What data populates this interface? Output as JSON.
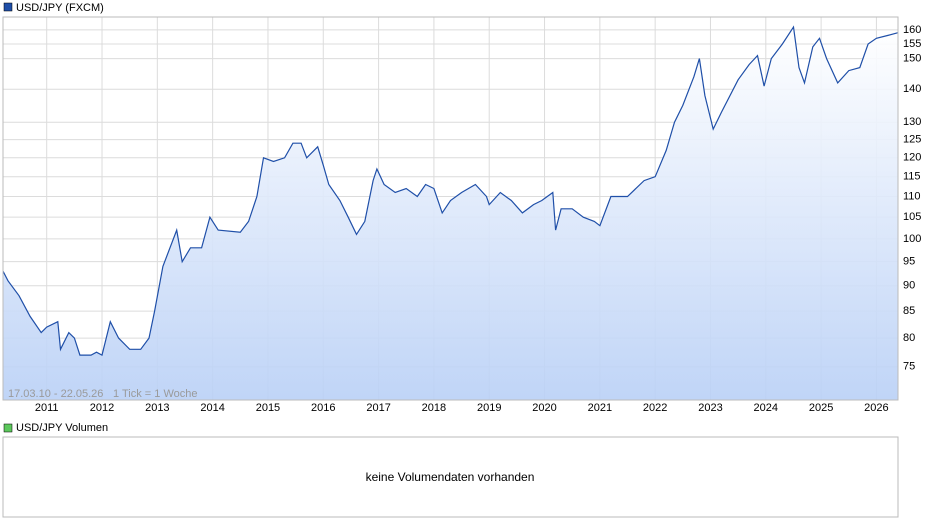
{
  "chart_data": {
    "type": "line",
    "log_scale": true,
    "grid": true,
    "range_label": "17.03.10 - 22.05.26",
    "tick_info": "1 Tick = 1 Woche",
    "xlim": [
      2010.21,
      2026.39
    ],
    "xticks": [
      2011,
      2012,
      2013,
      2014,
      2015,
      2016,
      2017,
      2018,
      2019,
      2020,
      2021,
      2022,
      2023,
      2024,
      2025,
      2026
    ],
    "ylim": [
      69.6,
      164.7
    ],
    "yticks": [
      75,
      80,
      85,
      90,
      95,
      100,
      105,
      110,
      115,
      120,
      125,
      130,
      140,
      150,
      155,
      160
    ],
    "x": [
      2010.21,
      2010.3,
      2010.5,
      2010.7,
      2010.9,
      2011.0,
      2011.2,
      2011.25,
      2011.4,
      2011.5,
      2011.6,
      2011.8,
      2011.9,
      2012.0,
      2012.15,
      2012.3,
      2012.5,
      2012.7,
      2012.85,
      2012.95,
      2013.1,
      2013.35,
      2013.45,
      2013.6,
      2013.8,
      2013.95,
      2014.1,
      2014.5,
      2014.65,
      2014.8,
      2014.92,
      2015.1,
      2015.3,
      2015.45,
      2015.6,
      2015.7,
      2015.9,
      2016.0,
      2016.1,
      2016.3,
      2016.45,
      2016.6,
      2016.75,
      2016.9,
      2016.97,
      2017.1,
      2017.3,
      2017.5,
      2017.7,
      2017.85,
      2018.0,
      2018.15,
      2018.3,
      2018.5,
      2018.75,
      2018.95,
      2019.0,
      2019.2,
      2019.4,
      2019.6,
      2019.8,
      2019.95,
      2020.15,
      2020.2,
      2020.3,
      2020.5,
      2020.7,
      2020.9,
      2021.0,
      2021.2,
      2021.5,
      2021.8,
      2022.0,
      2022.2,
      2022.35,
      2022.5,
      2022.7,
      2022.8,
      2022.9,
      2023.05,
      2023.2,
      2023.5,
      2023.7,
      2023.85,
      2023.97,
      2024.1,
      2024.3,
      2024.5,
      2024.6,
      2024.7,
      2024.85,
      2024.97,
      2025.1,
      2025.3,
      2025.5,
      2025.7,
      2025.85,
      2026.0,
      2026.2,
      2026.39
    ],
    "series": [
      {
        "name": "USD/JPY (FXCM)",
        "color": "#1f4fa8",
        "values": [
          93,
          91,
          88,
          84,
          81,
          82,
          83,
          78,
          81,
          80,
          77,
          77,
          77.5,
          77,
          83,
          80,
          78,
          78,
          80,
          85,
          94,
          102,
          95,
          98,
          98,
          105,
          102,
          101.5,
          104,
          110,
          120,
          119,
          120,
          124,
          124,
          120,
          123,
          118,
          113,
          109,
          105,
          101,
          104,
          114,
          117,
          113,
          111,
          112,
          110,
          113,
          112,
          106,
          109,
          111,
          113,
          110,
          108,
          111,
          109,
          106,
          108,
          109,
          111,
          102,
          107,
          107,
          105,
          104,
          103,
          110,
          110,
          114,
          115,
          122,
          130,
          135,
          144,
          150,
          138,
          128,
          133,
          143,
          148,
          151,
          141,
          150,
          155,
          161,
          147,
          142,
          154,
          157,
          150,
          142,
          146,
          147,
          155,
          157,
          158,
          159
        ]
      }
    ]
  },
  "volume_panel": {
    "title": "USD/JPY Volumen",
    "message": "keine Volumendaten vorhanden"
  }
}
